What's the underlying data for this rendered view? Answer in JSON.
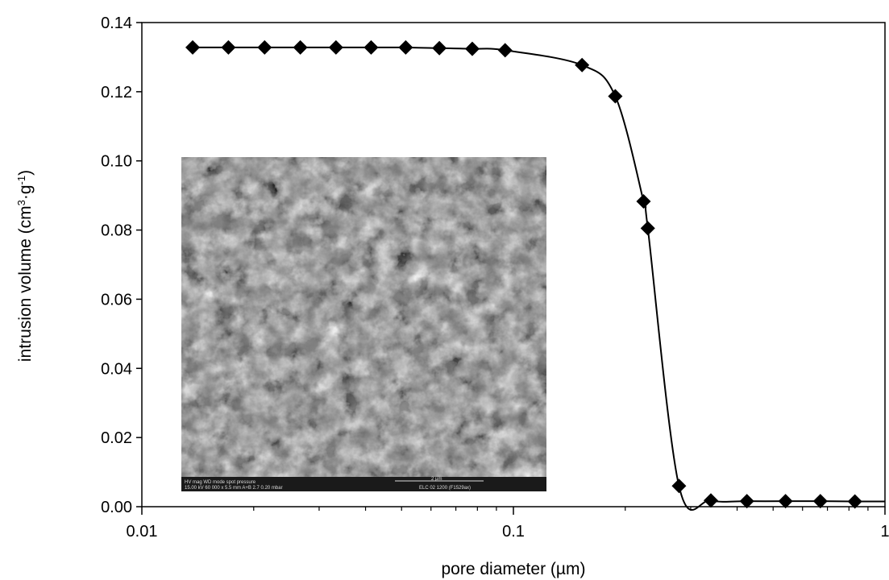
{
  "chart_data": {
    "type": "scatter",
    "title": "",
    "xlabel": "pore diameter (µm)",
    "ylabel": {
      "prefix": "intrusion volume (cm",
      "sup1": "3",
      "mid": "·g",
      "sup2": "-1",
      "suffix": ")"
    },
    "x_scale": "log",
    "xlim": [
      0.01,
      1
    ],
    "ylim": [
      0,
      0.14
    ],
    "grid": false,
    "x_ticks": [
      0.01,
      0.1,
      1
    ],
    "x_tick_labels": [
      "0.01",
      "0.1",
      "1"
    ],
    "y_ticks": [
      0,
      0.02,
      0.04,
      0.06,
      0.08,
      0.1,
      0.12,
      0.14
    ],
    "y_tick_labels": [
      "0.00",
      "0.02",
      "0.04",
      "0.06",
      "0.08",
      "0.10",
      "0.12",
      "0.14"
    ],
    "series": [
      {
        "x": [
          0.0137,
          0.0171,
          0.0214,
          0.0267,
          0.0333,
          0.0414,
          0.0513,
          0.0632,
          0.0775,
          0.095,
          0.153,
          0.188,
          0.224,
          0.23,
          0.279,
          0.34,
          0.425,
          0.54,
          0.67,
          0.83
        ],
        "y": [
          0.1328,
          0.1328,
          0.1328,
          0.1328,
          0.1328,
          0.1328,
          0.1328,
          0.1326,
          0.1324,
          0.132,
          0.1277,
          0.1187,
          0.0883,
          0.0805,
          0.006,
          0.0018,
          0.0016,
          0.0016,
          0.0016,
          0.0015
        ],
        "marker": "diamond",
        "color": "#000000",
        "line": "smooth"
      }
    ],
    "inset": {
      "kind": "SEM micrograph",
      "caption_row1": "HV      mag     WD   mode spot  pressure",
      "caption_row2": "15.00 kV 60 000 x 5.5 mm  A+B   2.7  0.20 mbar",
      "scale_bar": "2 µm",
      "ident": "ELC 02  1200 (F1529ax)"
    }
  }
}
